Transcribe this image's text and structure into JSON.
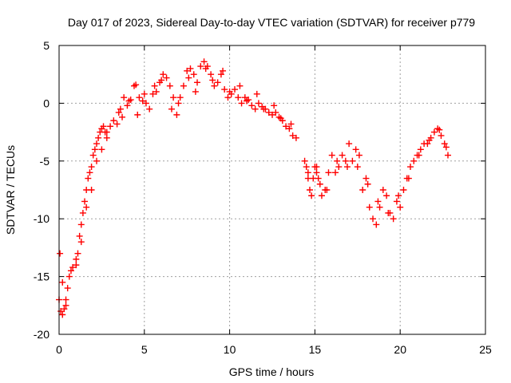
{
  "chart_data": {
    "type": "scatter",
    "title": "Day 017 of 2023, Sidereal Day-to-day VTEC variation (SDTVAR) for receiver p779",
    "xlabel": "GPS time / hours",
    "ylabel": "SDTVAR / TECUs",
    "xlim": [
      0,
      25
    ],
    "ylim": [
      -20,
      5
    ],
    "x_ticks": [
      0,
      5,
      10,
      15,
      20,
      25
    ],
    "y_ticks": [
      -20,
      -15,
      -10,
      -5,
      0,
      5
    ],
    "x_tick_labels": [
      "0",
      "5",
      "10",
      "15",
      "20",
      "25"
    ],
    "y_tick_labels": [
      "-20",
      "-15",
      "-10",
      "-5",
      "0",
      "5"
    ],
    "grid": true,
    "marker": "plus",
    "color": "#ff0000",
    "series": [
      {
        "name": "SDTVAR",
        "x": [
          0.0,
          0.1,
          0.2,
          0.3,
          0.4,
          0.5,
          0.6,
          0.8,
          1.0,
          1.1,
          1.2,
          1.3,
          1.4,
          1.5,
          1.6,
          1.7,
          1.8,
          1.9,
          2.0,
          2.1,
          2.2,
          2.3,
          2.4,
          2.5,
          2.6,
          2.7,
          2.8,
          3.0,
          3.2,
          3.4,
          3.6,
          3.8,
          4.0,
          4.2,
          4.4,
          4.5,
          4.7,
          4.9,
          5.1,
          5.3,
          5.5,
          5.7,
          5.9,
          6.1,
          6.3,
          6.5,
          6.7,
          6.9,
          7.1,
          7.3,
          7.5,
          7.7,
          7.9,
          8.1,
          8.3,
          8.5,
          8.7,
          8.9,
          9.1,
          9.3,
          9.5,
          9.7,
          9.9,
          10.1,
          10.3,
          10.5,
          10.7,
          10.9,
          11.1,
          11.3,
          11.5,
          11.7,
          11.9,
          12.1,
          12.3,
          12.5,
          12.7,
          12.9,
          13.1,
          13.3,
          13.5,
          13.7,
          13.9,
          14.4,
          14.5,
          14.6,
          14.7,
          14.8,
          14.9,
          15.0,
          15.1,
          15.2,
          15.3,
          15.4,
          15.6,
          15.8,
          16.0,
          16.2,
          16.4,
          16.6,
          16.8,
          17.0,
          17.2,
          17.4,
          17.6,
          17.8,
          18.0,
          18.2,
          18.4,
          18.6,
          18.8,
          19.0,
          19.2,
          19.4,
          19.6,
          19.8,
          20.0,
          20.2,
          20.4,
          20.6,
          20.8,
          21.0,
          21.2,
          21.4,
          21.6,
          21.8,
          22.0,
          22.2,
          22.4,
          22.6,
          22.8,
          0.05,
          0.2,
          0.4,
          0.7,
          1.0,
          1.3,
          1.6,
          1.9,
          2.2,
          2.5,
          2.8,
          3.5,
          3.7,
          4.1,
          4.6,
          5.0,
          5.6,
          6.0,
          6.6,
          7.0,
          7.6,
          8.0,
          8.6,
          9.0,
          9.6,
          10.0,
          10.6,
          11.0,
          11.6,
          12.0,
          12.6,
          13.0,
          13.6,
          14.6,
          15.1,
          15.7,
          16.3,
          16.9,
          17.5,
          18.1,
          18.7,
          19.3,
          19.9,
          20.5,
          21.1,
          21.7,
          22.3,
          22.7
        ],
        "y": [
          -17.0,
          -18.0,
          -18.3,
          -17.8,
          -17.0,
          -16.0,
          -15.0,
          -14.2,
          -14.0,
          -13.0,
          -11.5,
          -10.5,
          -9.5,
          -8.5,
          -7.5,
          -6.5,
          -6.0,
          -5.5,
          -4.5,
          -4.0,
          -3.5,
          -3.0,
          -2.5,
          -2.2,
          -2.0,
          -2.5,
          -3.0,
          -2.0,
          -1.5,
          -1.8,
          -0.5,
          0.5,
          -0.2,
          0.3,
          1.5,
          1.6,
          0.5,
          0.2,
          0.0,
          -0.5,
          0.8,
          1.0,
          1.8,
          2.5,
          2.2,
          1.5,
          0.5,
          -1.0,
          0.5,
          1.5,
          2.8,
          3.0,
          2.5,
          1.8,
          3.2,
          3.6,
          3.2,
          2.5,
          1.5,
          1.8,
          2.5,
          1.2,
          0.5,
          0.8,
          1.2,
          0.5,
          0.0,
          0.5,
          0.3,
          -0.2,
          -0.5,
          0.0,
          -0.3,
          -0.5,
          -0.8,
          -1.0,
          -0.8,
          -1.2,
          -1.5,
          -2.0,
          -2.2,
          -2.8,
          -3.0,
          -5.0,
          -5.5,
          -6.5,
          -7.5,
          -8.0,
          -6.5,
          -5.5,
          -5.5,
          -6.5,
          -7.0,
          -8.0,
          -7.5,
          -6.0,
          -4.5,
          -6.0,
          -5.5,
          -4.5,
          -5.0,
          -3.5,
          -5.0,
          -4.0,
          -4.5,
          -7.5,
          -6.5,
          -9.0,
          -10.0,
          -10.5,
          -9.0,
          -7.5,
          -8.0,
          -9.5,
          -10.0,
          -8.5,
          -9.0,
          -7.5,
          -6.5,
          -5.5,
          -5.0,
          -4.5,
          -4.0,
          -3.5,
          -3.5,
          -3.0,
          -2.5,
          -2.2,
          -2.8,
          -3.5,
          -4.5,
          -13.0,
          -15.5,
          -17.5,
          -14.5,
          -13.5,
          -12.0,
          -9.0,
          -7.5,
          -5.0,
          -4.0,
          -2.5,
          -0.8,
          -1.2,
          0.2,
          -1.0,
          0.8,
          1.5,
          2.0,
          -0.5,
          0.0,
          2.2,
          1.0,
          3.0,
          2.0,
          2.8,
          1.0,
          1.5,
          0.2,
          0.8,
          -0.5,
          -0.2,
          -1.3,
          -1.8,
          -6.0,
          -6.0,
          -7.5,
          -5.0,
          -5.5,
          -5.5,
          -7.0,
          -8.5,
          -9.5,
          -8.0,
          -6.5,
          -4.5,
          -3.2,
          -2.3,
          -3.8
        ]
      }
    ]
  }
}
